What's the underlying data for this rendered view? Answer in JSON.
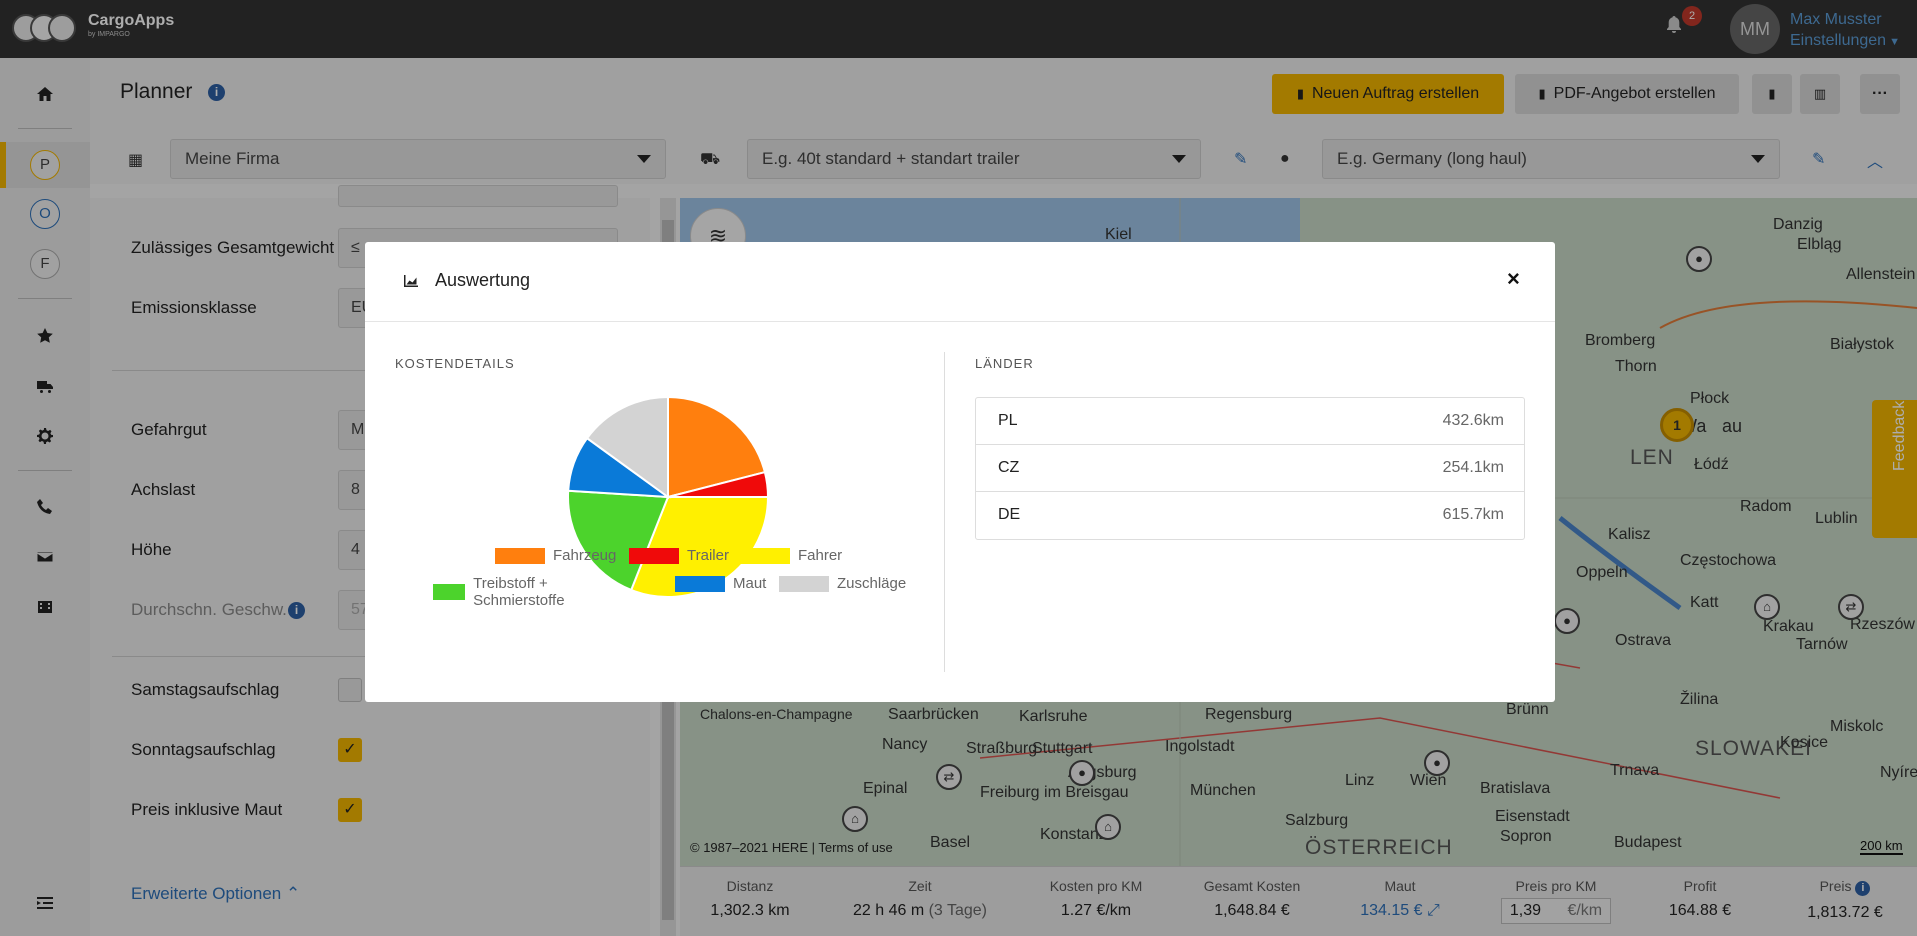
{
  "app": {
    "name": "CargoApps",
    "subname": "by IMPARGO"
  },
  "user": {
    "initials": "MM",
    "name": "Max Musster",
    "menu": "Einstellungen",
    "notifications": "2"
  },
  "nav": {
    "items": [
      "P",
      "O",
      "F"
    ]
  },
  "header": {
    "title": "Planner",
    "btn_new_order": "Neuen Auftrag erstellen",
    "btn_pdf": "PDF-Angebot erstellen",
    "company_select": "Meine Firma",
    "vehicle_placeholder": "E.g. 40t standard + standart trailer",
    "profile_placeholder": "E.g. Germany (long haul)"
  },
  "form": {
    "gesamtgewicht_label": "Zulässiges Gesamtgewicht",
    "gesamtgewicht_value": "≤",
    "emission_label": "Emissionsklasse",
    "emission_value": "EU",
    "gefahrgut_label": "Gefahrgut",
    "gefahrgut_value": "M",
    "achslast_label": "Achslast",
    "achslast_value": "8",
    "hoehe_label": "Höhe",
    "hoehe_value": "4",
    "geschw_label": "Durchschn. Geschw.",
    "geschw_value": "57",
    "samstag_label": "Samstagsaufschlag",
    "sonntag_label": "Sonntagsaufschlag",
    "maut_label": "Preis inklusive Maut",
    "erweitert": "Erweiterte Optionen"
  },
  "map": {
    "labels": [
      "Kiel",
      "Danzig",
      "Elbląg",
      "Allenstein",
      "Bromberg",
      "Thorn",
      "Płock",
      "Białystok",
      "Wa",
      "au",
      "LEN",
      "Łódź",
      "Radom",
      "Lublin",
      "Kalisz",
      "Częstochowa",
      "Oppeln",
      "Katt",
      "Krakau",
      "Tarnów",
      "Rzeszów",
      "Ostrava",
      "Brünn",
      "SLOWAKEI",
      "Žilina",
      "Karlsruhe",
      "Saarbrücken",
      "Straßburg",
      "Stuttgart",
      "Augsburg",
      "Nancy",
      "Freiburg im Breisgau",
      "Ingolstadt",
      "Regensburg",
      "München",
      "Linz",
      "Wien",
      "Bratislava",
      "ÖSTERREICH",
      "Salzburg",
      "Budapest",
      "Basel",
      "Epinal",
      "Chalons-en-Champagne",
      "Konstanz",
      "Kosice",
      "Trnava",
      "Eisenstadt",
      "Sopron",
      "Miskolc",
      "Nyíregyháza"
    ],
    "copyright": "© 1987–2021 HERE | Terms of use",
    "scale": "200 km",
    "feedback": "Feedback",
    "stop_number": "1"
  },
  "footer": {
    "distanz_label": "Distanz",
    "distanz": "1,302.3 km",
    "zeit_label": "Zeit",
    "zeit": "22 h 46 m",
    "zeit_tage": "(3 Tage)",
    "kostenkm_label": "Kosten pro KM",
    "kostenkm": "1.27 €/km",
    "gesamt_label": "Gesamt Kosten",
    "gesamt": "1,648.84 €",
    "maut_label": "Maut",
    "maut": "134.15 €",
    "preiskm_label": "Preis pro KM",
    "preiskm_value": "1,39",
    "preiskm_unit": "€/km",
    "profit_label": "Profit",
    "profit": "164.88 €",
    "preis_label": "Preis",
    "preis": "1,813.72 €"
  },
  "modal": {
    "title": "Auswertung",
    "kosten_title": "KOSTENDETAILS",
    "laender_title": "LÄNDER",
    "countries": [
      {
        "code": "PL",
        "km": "432.6km"
      },
      {
        "code": "CZ",
        "km": "254.1km"
      },
      {
        "code": "DE",
        "km": "615.7km"
      }
    ]
  },
  "chart_data": {
    "type": "pie",
    "title": "",
    "slices": [
      {
        "name": "Fahrzeug",
        "value": 21,
        "color": "#ff7f0e"
      },
      {
        "name": "Trailer",
        "value": 4,
        "color": "#f00a0a"
      },
      {
        "name": "Fahrer",
        "value": 31,
        "color": "#fff000"
      },
      {
        "name": "Treibstoff + Schmierstoffe",
        "value": 20,
        "color": "#4cd32c"
      },
      {
        "name": "Maut",
        "value": 9,
        "color": "#0a7ad8"
      },
      {
        "name": "Zuschläge",
        "value": 15,
        "color": "#d3d3d3"
      }
    ],
    "legend_placement": "bottom"
  }
}
